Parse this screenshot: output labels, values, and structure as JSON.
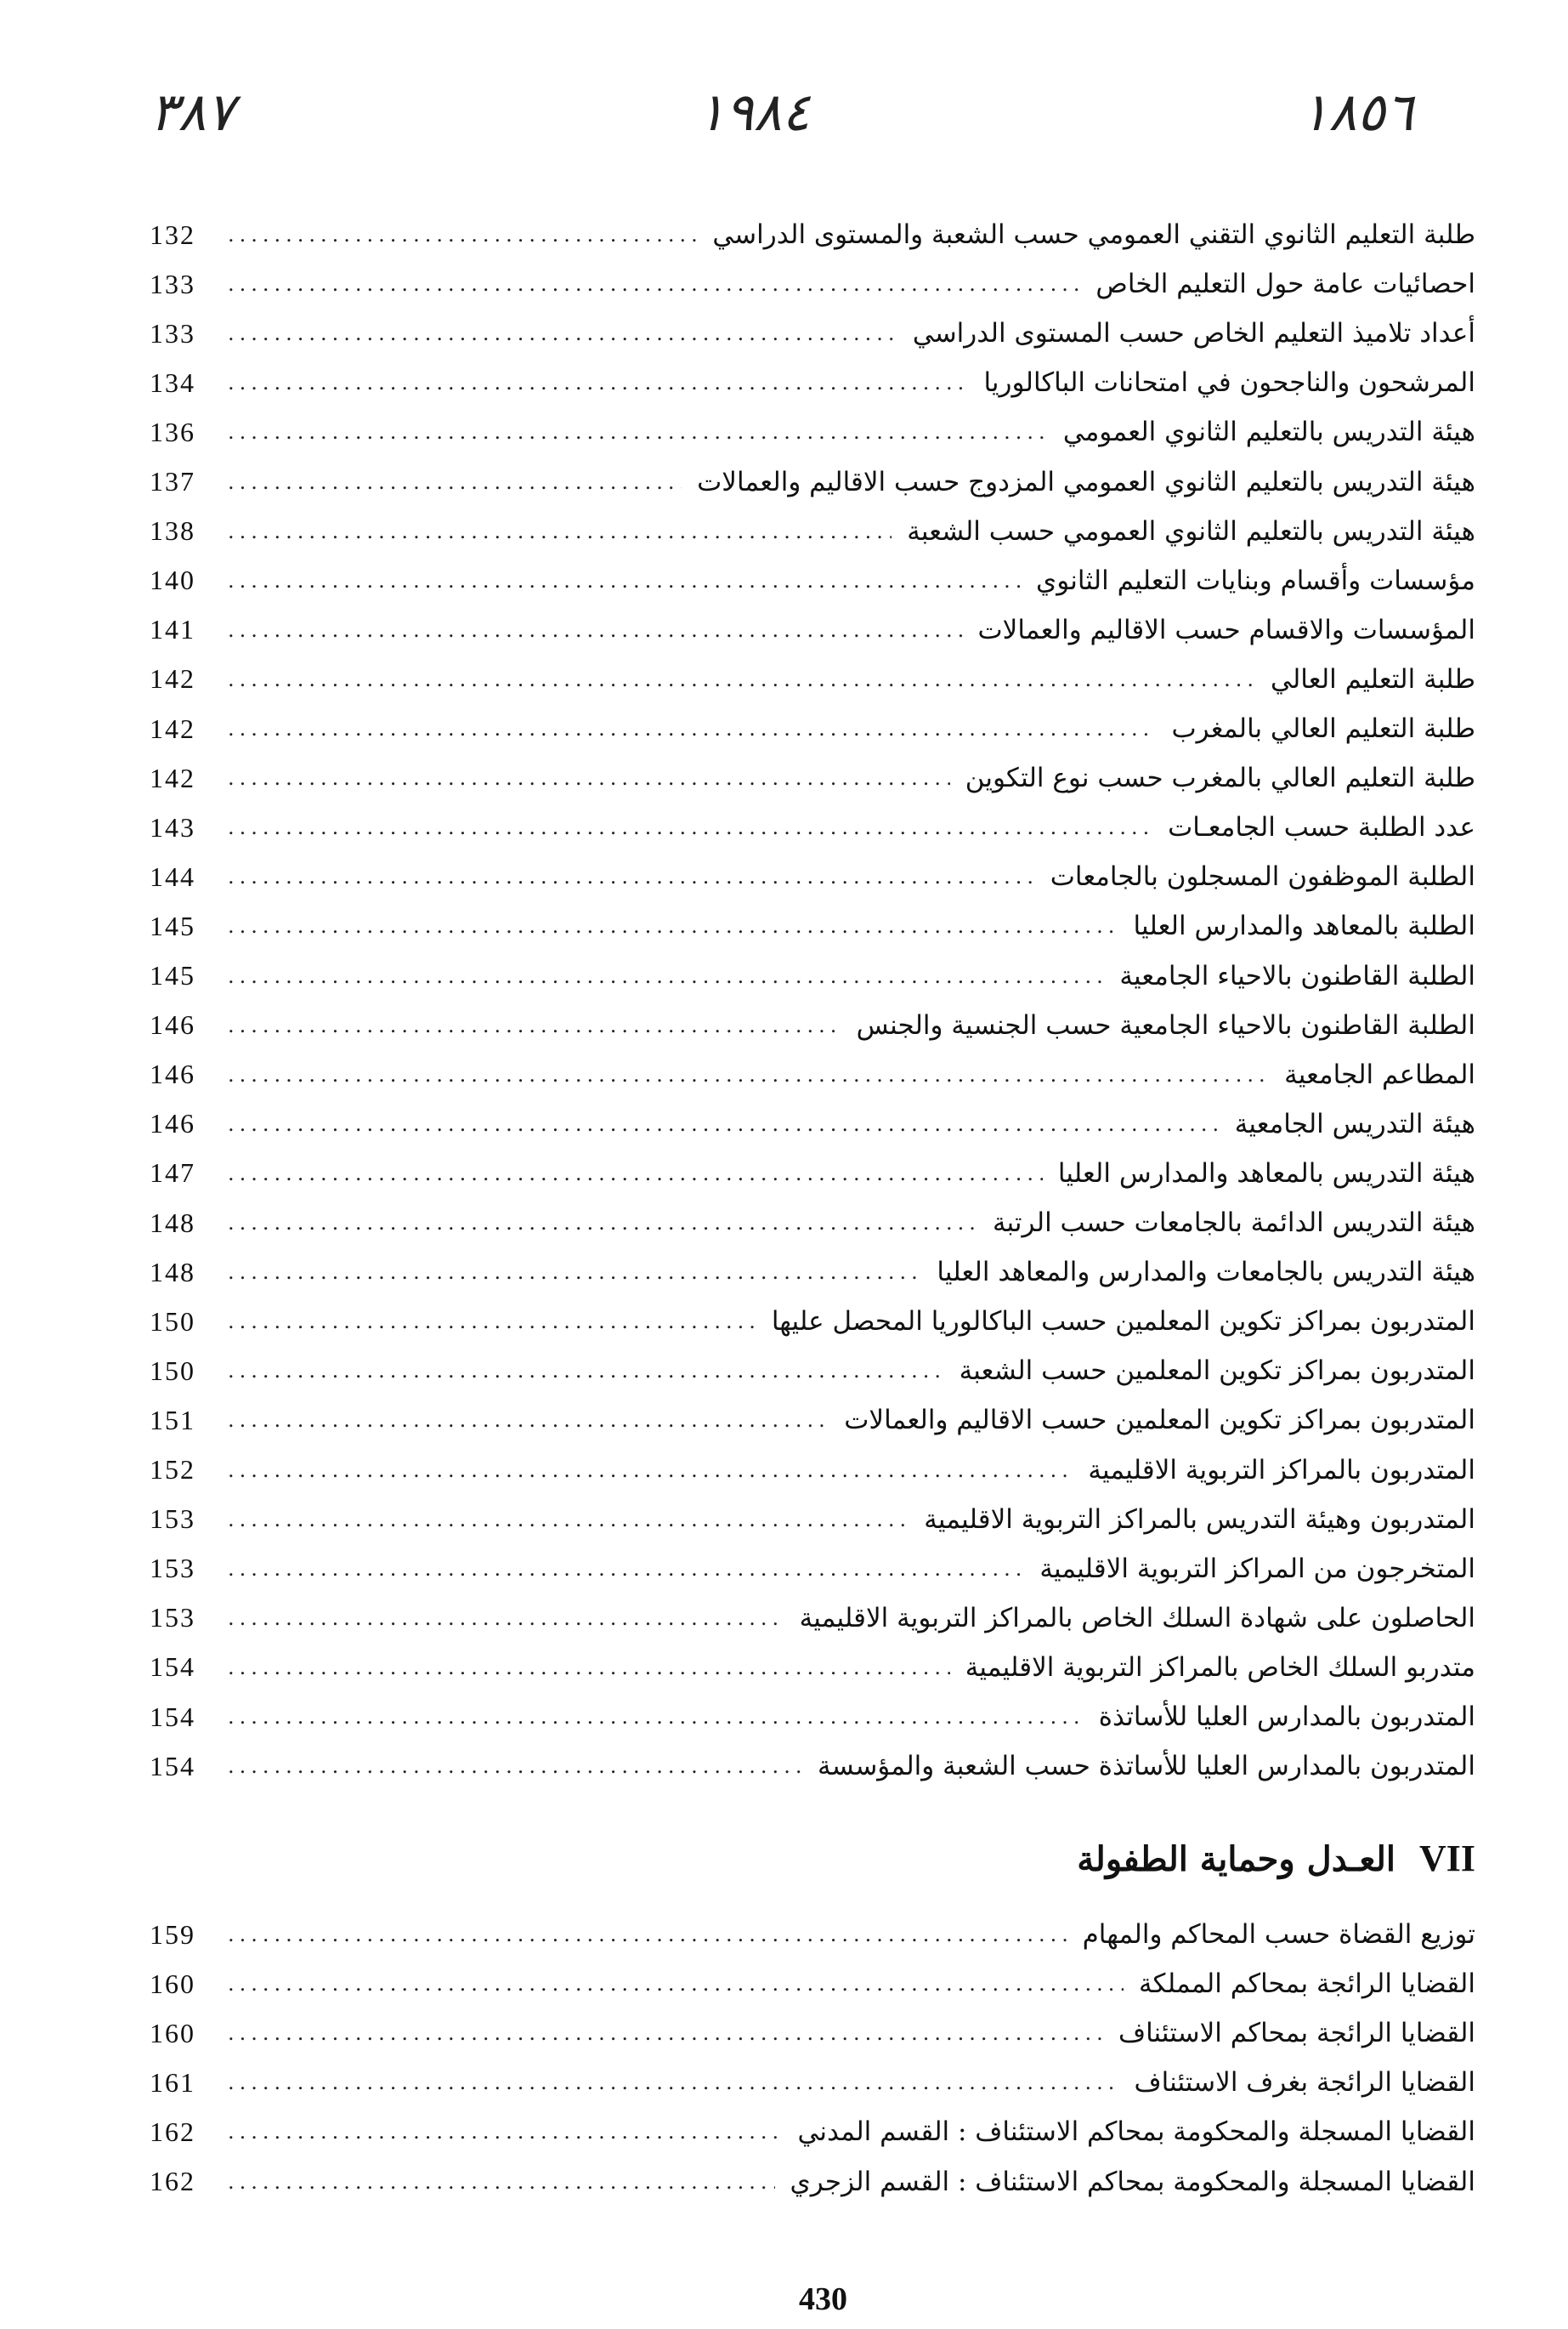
{
  "handwritten": {
    "left": "٣٨٧",
    "middle": "١٩٨٤",
    "right": "١٨٥٦"
  },
  "entries": [
    {
      "title": "طلبة التعليم الثانوي التقني العمومي حسب الشعبة والمستوى الدراسي",
      "page": "132"
    },
    {
      "title": "احصائيات عامة حول التعليم الخاص",
      "page": "133"
    },
    {
      "title": "أعداد تلاميذ التعليم الخاص حسب المستوى الدراسي",
      "page": "133"
    },
    {
      "title": "المرشحون والناجحون في امتحانات الباكالوريا",
      "page": "134"
    },
    {
      "title": "هيئة التدريس بالتعليم الثانوي العمومي",
      "page": "136"
    },
    {
      "title": "هيئة التدريس بالتعليم الثانوي العمومي المزدوج حسب الاقاليم والعمالات",
      "page": "137"
    },
    {
      "title": "هيئة التدريس بالتعليم الثانوي العمومي حسب الشعبة",
      "page": "138"
    },
    {
      "title": "مؤسسات وأقسام وبنايات التعليم الثانوي",
      "page": "140"
    },
    {
      "title": "المؤسسات والاقسام حسب الاقاليم والعمالات",
      "page": "141"
    },
    {
      "title": "طلبة التعليم العالي",
      "page": "142"
    },
    {
      "title": "طلبة التعليم العالي بالمغرب",
      "page": "142"
    },
    {
      "title": "طلبة التعليم العالي بالمغرب حسب نوع التكوين",
      "page": "142"
    },
    {
      "title": "عدد الطلبة حسب الجامعـات",
      "page": "143"
    },
    {
      "title": "الطلبة الموظفون المسجلون بالجامعات",
      "page": "144"
    },
    {
      "title": "الطلبة بالمعاهد والمدارس العليا",
      "page": "145"
    },
    {
      "title": "الطلبة القاطنون بالاحياء الجامعية",
      "page": "145"
    },
    {
      "title": "الطلبة القاطنون بالاحياء الجامعية حسب الجنسية والجنس",
      "page": "146"
    },
    {
      "title": "المطاعم الجامعية",
      "page": "146"
    },
    {
      "title": "هيئة التدريس الجامعية",
      "page": "146"
    },
    {
      "title": "هيئة التدريس بالمعاهد والمدارس العليا",
      "page": "147"
    },
    {
      "title": "هيئة التدريس الدائمة بالجامعات حسب الرتبة",
      "page": "148"
    },
    {
      "title": "هيئة التدريس بالجامعات والمدارس والمعاهد العليا",
      "page": "148"
    },
    {
      "title": "المتدربون بمراكز تكوين المعلمين حسب الباكالوريا المحصل عليها",
      "page": "150"
    },
    {
      "title": "المتدربون بمراكز تكوين المعلمين حسب الشعبة",
      "page": "150"
    },
    {
      "title": "المتدربون بمراكز تكوين المعلمين حسب الاقاليم والعمالات",
      "page": "151"
    },
    {
      "title": "المتدربون بالمراكز التربوية الاقليمية",
      "page": "152"
    },
    {
      "title": "المتدربون وهيئة التدريس بالمراكز التربوية الاقليمية",
      "page": "153"
    },
    {
      "title": "المتخرجون من المراكز التربوية الاقليمية",
      "page": "153"
    },
    {
      "title": "الحاصلون على شهادة السلك الخاص بالمراكز التربوية الاقليمية",
      "page": "153"
    },
    {
      "title": "متدربو السلك الخاص بالمراكز التربوية الاقليمية",
      "page": "154"
    },
    {
      "title": "المتدربون بالمدارس العليا للأساتذة",
      "page": "154"
    },
    {
      "title": "المتدربون بالمدارس العليا للأساتذة حسب الشعبة والمؤسسة",
      "page": "154"
    }
  ],
  "section": {
    "number": "VII",
    "title": "العـدل وحماية الطفولة",
    "entries": [
      {
        "title": "توزيع القضاة حسب المحاكم والمهام",
        "page": "159"
      },
      {
        "title": "القضايا الرائجة بمحاكم المملكة",
        "page": "160"
      },
      {
        "title": "القضايا الرائجة بمحاكم الاستئناف",
        "page": "160"
      },
      {
        "title": "القضايا الرائجة بغرف الاستئناف",
        "page": "161"
      },
      {
        "title": "القضايا المسجلة والمحكومة بمحاكم الاستئناف : القسم المدني",
        "page": "162"
      },
      {
        "title": "القضايا المسجلة والمحكومة بمحاكم الاستئناف : القسم الزجري",
        "page": "162"
      }
    ]
  },
  "page_number": "430"
}
